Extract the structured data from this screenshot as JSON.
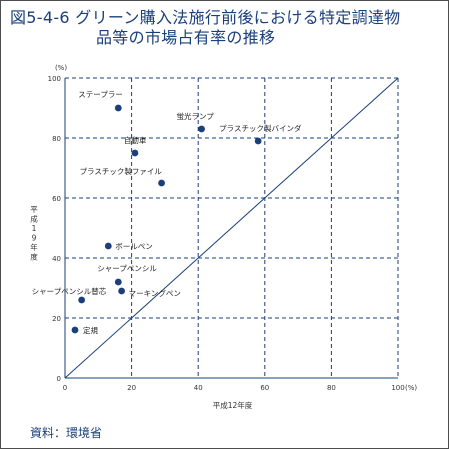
{
  "figure": {
    "title_line1": "図5-4-6 グリーン購入法施行前後における特定調達物",
    "title_line2": "品等の市場占有率の推移",
    "source": "資料：環境省"
  },
  "chart_data": {
    "type": "scatter",
    "title": "",
    "xlabel": "平成12年度",
    "ylabel": "平成19年度",
    "x_unit": "(%)",
    "y_unit": "(%)",
    "xlim": [
      0,
      100
    ],
    "ylim": [
      0,
      100
    ],
    "xticks": [
      0,
      20,
      40,
      60,
      80,
      100
    ],
    "yticks": [
      0,
      20,
      40,
      60,
      80,
      100
    ],
    "grid": true,
    "diagonal_reference_line": true,
    "point_color": "#1a3f7a",
    "line_color": "#1a3f7a",
    "points": [
      {
        "label": "ステープラー",
        "x": 16,
        "y": 90
      },
      {
        "label": "蛍光ランプ",
        "x": 41,
        "y": 83
      },
      {
        "label": "プラスチック製バインダ",
        "x": 58,
        "y": 79
      },
      {
        "label": "自動車",
        "x": 21,
        "y": 75
      },
      {
        "label": "プラスチック製ファイル",
        "x": 29,
        "y": 65
      },
      {
        "label": "ボールペン",
        "x": 13,
        "y": 44
      },
      {
        "label": "シャープペンシル",
        "x": 16,
        "y": 32
      },
      {
        "label": "シャープペンシル替芯",
        "x": 5,
        "y": 26
      },
      {
        "label": "マーキングペン",
        "x": 17,
        "y": 29
      },
      {
        "label": "定規",
        "x": 3,
        "y": 16
      }
    ]
  }
}
